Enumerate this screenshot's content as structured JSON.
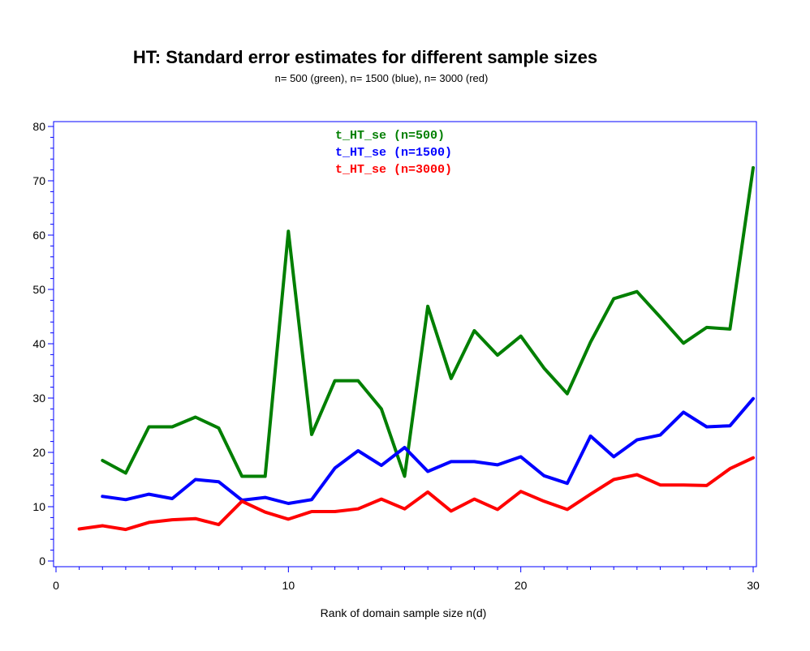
{
  "chart_data": {
    "type": "line",
    "title": "HT: Standard error estimates for different sample sizes",
    "subtitle": "n= 500 (green), n= 1500 (blue), n= 3000 (red)",
    "xlabel": "Rank of domain sample size n(d)",
    "ylabel": "",
    "xlim": [
      0,
      30
    ],
    "ylim": [
      0,
      80
    ],
    "xticks": [
      0,
      10,
      20,
      30
    ],
    "yticks": [
      0,
      10,
      20,
      30,
      40,
      50,
      60,
      70,
      80
    ],
    "grid": false,
    "legend_position": "top-center",
    "series": [
      {
        "name": "t_HT_se (n=500)",
        "color": "#007f00",
        "x": [
          2,
          3,
          4,
          5,
          6,
          7,
          8,
          9,
          10,
          11,
          12,
          13,
          14,
          15,
          16,
          17,
          18,
          19,
          20,
          21,
          22,
          23,
          24,
          25,
          26,
          27,
          28,
          29,
          30
        ],
        "y": [
          18.5,
          16.2,
          24.7,
          24.7,
          26.5,
          24.5,
          15.6,
          15.6,
          60.7,
          23.3,
          33.2,
          33.2,
          28.0,
          15.6,
          46.9,
          33.6,
          42.4,
          37.9,
          41.4,
          35.5,
          30.8,
          40.3,
          48.3,
          49.6,
          44.9,
          40.1,
          43.0,
          42.7,
          72.4
        ]
      },
      {
        "name": "t_HT_se (n=1500)",
        "color": "#0000ff",
        "x": [
          2,
          3,
          4,
          5,
          6,
          7,
          8,
          9,
          10,
          11,
          12,
          13,
          14,
          15,
          16,
          17,
          18,
          19,
          20,
          21,
          22,
          23,
          24,
          25,
          26,
          27,
          28,
          29,
          30
        ],
        "y": [
          11.9,
          11.3,
          12.3,
          11.5,
          15.0,
          14.6,
          11.2,
          11.7,
          10.6,
          11.3,
          17.1,
          20.3,
          17.6,
          20.9,
          16.5,
          18.3,
          18.3,
          17.7,
          19.2,
          15.7,
          14.3,
          23.0,
          19.2,
          22.3,
          23.2,
          27.4,
          24.7,
          24.9,
          29.9
        ]
      },
      {
        "name": "t_HT_se (n=3000)",
        "color": "#ff0000",
        "x": [
          1,
          2,
          3,
          4,
          5,
          6,
          7,
          8,
          9,
          10,
          11,
          12,
          13,
          14,
          15,
          16,
          17,
          18,
          19,
          20,
          21,
          22,
          23,
          24,
          25,
          26,
          27,
          28,
          29,
          30
        ],
        "y": [
          5.9,
          6.5,
          5.8,
          7.1,
          7.6,
          7.8,
          6.7,
          11.0,
          9.0,
          7.7,
          9.1,
          9.1,
          9.6,
          11.4,
          9.6,
          12.7,
          9.2,
          11.4,
          9.5,
          12.8,
          11.0,
          9.5,
          12.3,
          15.0,
          15.9,
          14.0,
          14.0,
          13.9,
          17.0,
          19.0
        ]
      }
    ]
  }
}
